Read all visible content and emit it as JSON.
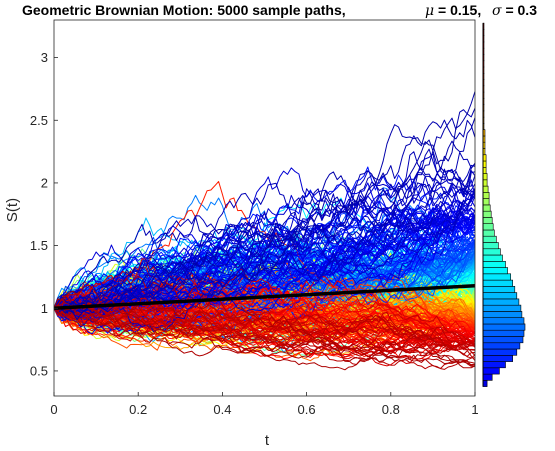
{
  "chart_data": {
    "type": "line",
    "title": "Geometric Brownian Motion: 5000 sample paths,",
    "params": [
      {
        "symbol": "μ",
        "text": " = 0.15,"
      },
      {
        "symbol": "σ",
        "text": " = 0.3"
      }
    ],
    "xlabel": "t",
    "ylabel": "S(t)",
    "xlim": [
      0,
      1
    ],
    "ylim": [
      0.3,
      3.3
    ],
    "xticks": [
      0,
      0.2,
      0.4,
      0.6,
      0.8,
      1
    ],
    "xtick_labels": [
      "0",
      "0.2",
      "0.4",
      "0.6",
      "0.8",
      "1"
    ],
    "yticks": [
      0.5,
      1,
      1.5,
      2,
      2.5,
      3
    ],
    "ytick_labels": [
      "0.5",
      "1",
      "1.5",
      "2",
      "2.5",
      "3"
    ],
    "grid": false,
    "num_paths": 5000,
    "mu": 0.15,
    "sigma": 0.3,
    "S0": 1,
    "colormap": "jet",
    "mean_line": {
      "x": [
        0,
        1
      ],
      "y": [
        1,
        1.18
      ],
      "color": "#000000"
    },
    "histogram": {
      "orientation": "horizontal",
      "at_t": 1,
      "bins": [
        {
          "y": 0.4,
          "count": 4
        },
        {
          "y": 0.45,
          "count": 9
        },
        {
          "y": 0.5,
          "count": 16
        },
        {
          "y": 0.55,
          "count": 22
        },
        {
          "y": 0.6,
          "count": 29
        },
        {
          "y": 0.65,
          "count": 33
        },
        {
          "y": 0.7,
          "count": 36
        },
        {
          "y": 0.75,
          "count": 39
        },
        {
          "y": 0.8,
          "count": 40
        },
        {
          "y": 0.85,
          "count": 41
        },
        {
          "y": 0.9,
          "count": 40
        },
        {
          "y": 0.95,
          "count": 38
        },
        {
          "y": 1.0,
          "count": 37
        },
        {
          "y": 1.05,
          "count": 35
        },
        {
          "y": 1.1,
          "count": 33
        },
        {
          "y": 1.15,
          "count": 31
        },
        {
          "y": 1.2,
          "count": 29
        },
        {
          "y": 1.25,
          "count": 27
        },
        {
          "y": 1.3,
          "count": 24
        },
        {
          "y": 1.35,
          "count": 22
        },
        {
          "y": 1.4,
          "count": 19
        },
        {
          "y": 1.45,
          "count": 17
        },
        {
          "y": 1.5,
          "count": 15
        },
        {
          "y": 1.55,
          "count": 13
        },
        {
          "y": 1.6,
          "count": 11
        },
        {
          "y": 1.65,
          "count": 10
        },
        {
          "y": 1.7,
          "count": 9
        },
        {
          "y": 1.75,
          "count": 8
        },
        {
          "y": 1.8,
          "count": 7
        },
        {
          "y": 1.85,
          "count": 6
        },
        {
          "y": 1.9,
          "count": 6
        },
        {
          "y": 1.95,
          "count": 5
        },
        {
          "y": 2.0,
          "count": 4
        },
        {
          "y": 2.05,
          "count": 4
        },
        {
          "y": 2.1,
          "count": 3
        },
        {
          "y": 2.15,
          "count": 3
        },
        {
          "y": 2.2,
          "count": 3
        },
        {
          "y": 2.25,
          "count": 2
        },
        {
          "y": 2.3,
          "count": 2
        },
        {
          "y": 2.35,
          "count": 2
        },
        {
          "y": 2.4,
          "count": 2
        },
        {
          "y": 2.45,
          "count": 1
        },
        {
          "y": 2.5,
          "count": 1
        },
        {
          "y": 2.55,
          "count": 1
        },
        {
          "y": 2.6,
          "count": 1
        },
        {
          "y": 2.65,
          "count": 1
        },
        {
          "y": 2.7,
          "count": 1
        },
        {
          "y": 2.75,
          "count": 1
        },
        {
          "y": 2.8,
          "count": 1
        },
        {
          "y": 2.85,
          "count": 1
        },
        {
          "y": 2.9,
          "count": 1
        },
        {
          "y": 2.95,
          "count": 1
        },
        {
          "y": 3.0,
          "count": 1
        },
        {
          "y": 3.05,
          "count": 1
        },
        {
          "y": 3.1,
          "count": 1
        },
        {
          "y": 3.15,
          "count": 1
        },
        {
          "y": 3.2,
          "count": 1
        },
        {
          "y": 3.25,
          "count": 1
        }
      ]
    }
  }
}
